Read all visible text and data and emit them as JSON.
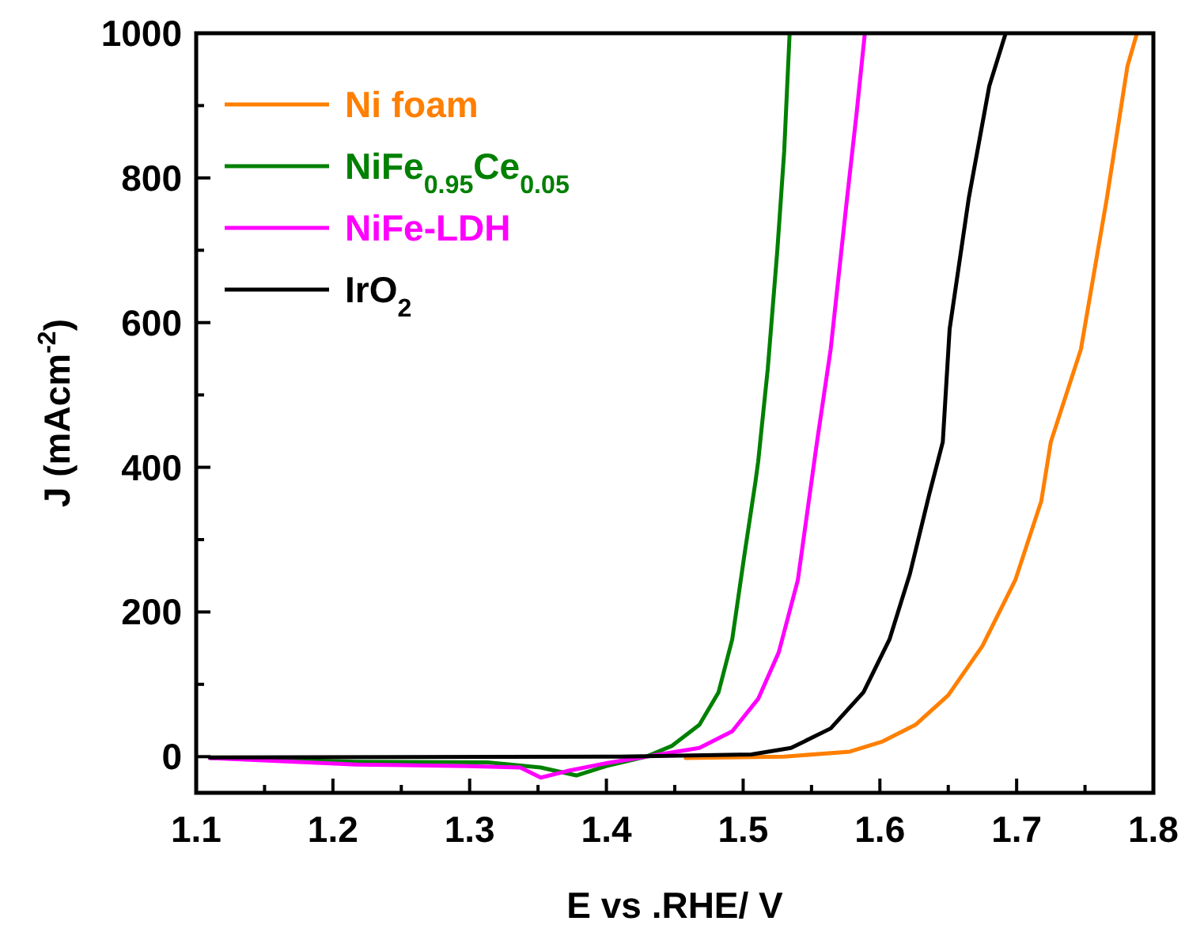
{
  "chart_data": {
    "type": "line",
    "xlabel": "E vs .RHE/ V",
    "ylabel": "J (mAcm$^{-2}$)",
    "xlim": [
      1.1,
      1.8
    ],
    "ylim": [
      -50,
      1000
    ],
    "xticks": [
      1.1,
      {
        "value": 1.15,
        "label": null
      },
      1.2,
      {
        "value": 1.25,
        "label": null
      },
      1.3,
      {
        "value": 1.35,
        "label": null
      },
      1.4,
      {
        "value": 1.45,
        "label": null
      },
      1.5,
      {
        "value": 1.55,
        "label": null
      },
      1.6,
      {
        "value": 1.65,
        "label": null
      },
      1.7,
      {
        "value": 1.75,
        "label": null
      },
      1.8
    ],
    "yticks": [
      0,
      {
        "value": 100,
        "label": null
      },
      200,
      {
        "value": 300,
        "label": null
      },
      400,
      {
        "value": 500,
        "label": null
      },
      600,
      {
        "value": 700,
        "label": null
      },
      800,
      {
        "value": 900,
        "label": null
      },
      1000
    ],
    "grid": false,
    "legend": "top left",
    "marker": "none",
    "line_style": "solid",
    "series": [
      {
        "name": "Ni foam",
        "color": "#ff7f00",
        "x": [
          1.458,
          1.53,
          1.578,
          1.602,
          1.626,
          1.65,
          1.675,
          1.699,
          1.718,
          1.725,
          1.747,
          1.766,
          1.781,
          1.788
        ],
        "values": [
          -2,
          0,
          7,
          21,
          44,
          85,
          153,
          244,
          353,
          435,
          563,
          772,
          954,
          1000
        ]
      },
      {
        "name": "NiFe$_{0.95}$Ce$_{0.05}$",
        "color": "#008000",
        "x": [
          1.11,
          1.217,
          1.313,
          1.352,
          1.378,
          1.4,
          1.429,
          1.448,
          1.468,
          1.482,
          1.492,
          1.501,
          1.509,
          1.511,
          1.518,
          1.525,
          1.53,
          1.534
        ],
        "values": [
          -2,
          -7,
          -8,
          -15,
          -26,
          -13,
          0,
          15,
          44,
          89,
          162,
          280,
          380,
          408,
          536,
          700,
          836,
          1000
        ]
      },
      {
        "name": "NiFe-LDH",
        "color": "#ff00ff",
        "x": [
          1.11,
          1.217,
          1.299,
          1.337,
          1.352,
          1.371,
          1.4,
          1.429,
          1.468,
          1.492,
          1.511,
          1.526,
          1.54,
          1.554,
          1.564,
          1.576,
          1.583,
          1.589
        ],
        "values": [
          -2,
          -11,
          -13,
          -15,
          -29,
          -20,
          -9,
          0,
          12,
          35,
          80,
          144,
          244,
          435,
          563,
          772,
          890,
          1000
        ]
      },
      {
        "name": "IrO$_{2}$",
        "color": "#000000",
        "x": [
          1.11,
          1.41,
          1.506,
          1.535,
          1.564,
          1.588,
          1.607,
          1.622,
          1.636,
          1.646,
          1.651,
          1.665,
          1.68,
          1.692
        ],
        "values": [
          -1,
          0,
          3,
          12,
          39,
          89,
          162,
          253,
          362,
          435,
          591,
          772,
          927,
          1000
        ]
      }
    ]
  }
}
